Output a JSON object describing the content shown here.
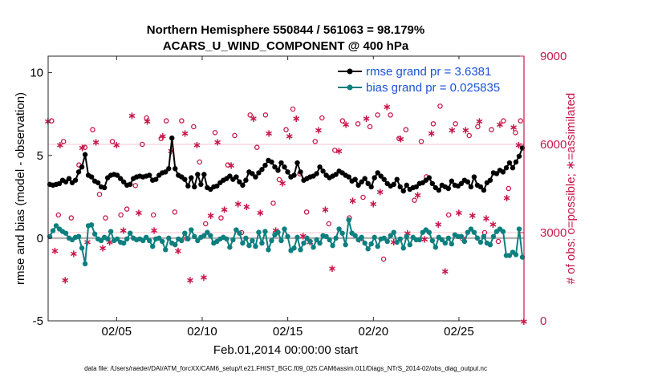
{
  "chart_data": {
    "type": "line",
    "title_line1": "Northern Hemisphere 550844 / 561063 = 98.179%",
    "title_line2": "ACARS_U_WIND_COMPONENT @ 400 hPa",
    "xlabel": "Feb.01,2014 00:00:00 start",
    "ylabel_left": "rmse and bias (model - observation)",
    "ylabel_right": "# of obs: o=possible; ∗=assimilated",
    "footnote": "data file: /Users/raeder/DAI/ATM_forcXX/CAM6_setup/f.e21.FHIST_BGC.f09_025.CAM6assim.011/Diags_NTrS_2014-02/obs_diag_output.nc",
    "x_day_range": [
      1,
      28.8
    ],
    "x_ticks": [
      {
        "day": 5,
        "label": "02/05"
      },
      {
        "day": 10,
        "label": "02/10"
      },
      {
        "day": 15,
        "label": "02/15"
      },
      {
        "day": 20,
        "label": "02/20"
      },
      {
        "day": 25,
        "label": "02/25"
      }
    ],
    "ylim_left": [
      -5,
      11
    ],
    "yticks_left": [
      {
        "value": -5,
        "label": "-5"
      },
      {
        "value": 0,
        "label": "0"
      },
      {
        "value": 5,
        "label": "5"
      },
      {
        "value": 10,
        "label": "10"
      }
    ],
    "ylim_right": [
      0,
      9000
    ],
    "yticks_right": [
      {
        "value": 0,
        "label": "0"
      },
      {
        "value": 3000,
        "label": "3000"
      },
      {
        "value": 6000,
        "label": "6000"
      },
      {
        "value": 9000,
        "label": "9000"
      }
    ],
    "series": [
      {
        "name": "rmse grand pr = 3.6381",
        "color": "#000000",
        "axis": "left",
        "values": [
          3.25,
          3.2,
          3.25,
          3.3,
          3.5,
          3.4,
          3.6,
          3.35,
          3.5,
          4.0,
          4.3,
          5.05,
          3.8,
          3.7,
          3.45,
          3.35,
          3.1,
          3.05,
          3.65,
          3.8,
          3.85,
          3.8,
          3.6,
          3.4,
          3.2,
          3.25,
          3.6,
          3.7,
          3.75,
          3.7,
          3.75,
          3.8,
          3.5,
          3.55,
          3.8,
          3.95,
          4.0,
          4.2,
          6.05,
          4.2,
          3.8,
          3.7,
          3.55,
          3.15,
          3.65,
          3.1,
          3.85,
          3.25,
          3.85,
          3.05,
          2.95,
          3.1,
          3.15,
          3.35,
          3.5,
          3.6,
          3.75,
          3.55,
          3.7,
          3.4,
          3.2,
          3.5,
          4.0,
          3.9,
          3.7,
          3.95,
          4.15,
          4.4,
          4.7,
          4.6,
          4.3,
          4.1,
          4.55,
          4.3,
          4.0,
          3.7,
          3.8,
          4.55,
          4.0,
          3.5,
          3.6,
          3.7,
          3.75,
          3.9,
          4.3,
          4.05,
          3.8,
          3.65,
          3.75,
          3.85,
          4.05,
          3.95,
          3.8,
          3.7,
          3.45,
          3.55,
          3.2,
          3.4,
          3.6,
          3.3,
          3.1,
          3.65,
          3.95,
          3.75,
          3.55,
          3.3,
          3.15,
          3.25,
          3.55,
          3.1,
          2.85,
          3.2,
          2.95,
          3.05,
          3.1,
          3.3,
          3.35,
          3.5,
          3.65,
          3.3,
          3.05,
          2.9,
          3.2,
          3.1,
          3.0,
          3.45,
          3.2,
          3.15,
          3.3,
          3.5,
          3.4,
          3.1,
          3.7,
          3.2,
          3.1,
          2.9,
          3.35,
          3.5,
          3.95,
          3.9,
          4.1,
          4.0,
          4.25,
          4.55,
          4.25,
          4.6,
          4.95,
          5.45
        ]
      },
      {
        "name": "bias grand pr = 0.025835",
        "color": "#0e7f7f",
        "axis": "left",
        "values": [
          0.1,
          0.45,
          0.75,
          0.55,
          0.4,
          0.3,
          0.0,
          -0.1,
          0.05,
          0.1,
          -0.6,
          -1.55,
          0.75,
          0.8,
          0.25,
          -0.05,
          -0.15,
          0.05,
          -0.05,
          0.4,
          -0.15,
          -0.05,
          -0.25,
          -0.3,
          -0.05,
          0.3,
          0.0,
          -0.1,
          -0.05,
          -0.15,
          0.05,
          -0.15,
          -0.5,
          -0.05,
          0.0,
          -0.2,
          -0.7,
          0.0,
          -0.3,
          -0.4,
          -0.05,
          -0.15,
          0.3,
          -0.05,
          0.5,
          0.1,
          -0.15,
          0.05,
          0.15,
          0.35,
          0.15,
          -0.3,
          -0.2,
          -0.05,
          0.05,
          -0.05,
          -0.55,
          -0.1,
          0.5,
          0.3,
          -0.3,
          0.0,
          -0.45,
          -0.15,
          -0.5,
          0.35,
          -0.3,
          0.4,
          -0.7,
          -0.15,
          0.2,
          0.35,
          -0.15,
          0.55,
          0.1,
          -0.75,
          -0.6,
          0.05,
          -0.7,
          -0.3,
          0.0,
          -0.2,
          -0.55,
          -0.1,
          -0.3,
          0.15,
          0.1,
          -0.1,
          -0.45,
          0.0,
          0.55,
          0.3,
          -0.4,
          1.1,
          0.3,
          0.15,
          -0.1,
          0.05,
          -0.3,
          -0.65,
          -0.35,
          0.05,
          -0.5,
          -0.05,
          0.0,
          -0.2,
          0.15,
          0.35,
          -0.25,
          -0.05,
          -0.6,
          0.1,
          -0.4,
          0.05,
          -0.1,
          -0.1,
          0.35,
          0.5,
          0.35,
          -0.15,
          -0.55,
          0.05,
          -0.1,
          -0.3,
          0.0,
          -0.35,
          0.2,
          0.1,
          0.1,
          -0.2,
          0.35,
          0.55,
          0.35,
          0.0,
          -0.25,
          0.1,
          -0.3,
          -0.4,
          0.1,
          0.4,
          0.55,
          0.4,
          -1.05,
          -1.05,
          -0.85,
          -1.0,
          0.55,
          -1.15
        ]
      },
      {
        "name": "obs possible",
        "marker": "o",
        "color": "#c8174a",
        "axis": "right",
        "days": [
          1.2,
          1.6,
          1.9,
          2.35,
          2.8,
          3.15,
          3.6,
          4.0,
          4.35,
          4.75,
          5.25,
          5.6,
          6.1,
          6.5,
          6.75,
          7.15,
          7.6,
          7.9,
          8.4,
          8.8,
          9.1,
          9.5,
          9.85,
          10.2,
          10.75,
          11.1,
          11.5,
          11.9,
          12.3,
          12.8,
          13.2,
          13.7,
          14.15,
          14.5,
          14.9,
          15.3,
          15.7,
          16.1,
          16.6,
          17.0,
          17.4,
          17.75,
          18.2,
          18.6,
          19.1,
          19.4,
          19.8,
          20.25,
          20.6,
          21.0,
          21.5,
          21.9,
          22.4,
          22.8,
          23.1,
          23.5,
          23.9,
          24.4,
          24.8,
          25.2,
          25.6,
          26.1,
          26.5,
          26.9,
          27.3,
          27.6,
          27.9,
          28.3,
          28.6
        ],
        "values": [
          6800,
          3600,
          6100,
          3500,
          5300,
          5900,
          6500,
          4300,
          3500,
          6100,
          3600,
          3800,
          4600,
          6000,
          6900,
          3600,
          6200,
          6800,
          3700,
          6800,
          2800,
          6600,
          5400,
          3300,
          6400,
          3500,
          5300,
          6300,
          3000,
          7000,
          5900,
          7000,
          4000,
          4800,
          6500,
          7200,
          5000,
          3700,
          6100,
          6900,
          3300,
          5800,
          6800,
          3500,
          6700,
          4200,
          6600,
          7000,
          2100,
          7000,
          6200,
          6500,
          4100,
          6100,
          4900,
          6700,
          7300,
          3600,
          6700,
          2800,
          6300,
          6600,
          3000,
          6500,
          2700,
          6800,
          4500,
          6400,
          6800
        ]
      },
      {
        "name": "obs assimilated",
        "marker": "*",
        "color": "#c8174a",
        "axis": "right",
        "days": [
          1.0,
          1.4,
          1.7,
          2.0,
          2.5,
          3.0,
          3.3,
          3.8,
          4.2,
          4.6,
          5.0,
          5.4,
          5.9,
          6.3,
          6.8,
          7.2,
          7.7,
          8.2,
          8.6,
          9.0,
          9.3,
          9.7,
          10.1,
          10.5,
          10.9,
          11.3,
          11.7,
          12.1,
          12.6,
          13.0,
          13.4,
          13.9,
          14.3,
          14.7,
          15.1,
          15.5,
          15.9,
          16.3,
          16.8,
          17.2,
          17.6,
          18.0,
          18.4,
          18.8,
          19.2,
          19.6,
          20.0,
          20.4,
          20.8,
          21.2,
          21.6,
          22.0,
          22.6,
          23.0,
          23.4,
          23.8,
          24.2,
          24.6,
          25.0,
          25.4,
          25.8,
          26.2,
          26.6,
          27.0,
          27.4,
          27.8,
          28.2,
          28.5,
          28.8
        ],
        "values": [
          6800,
          2400,
          6000,
          1400,
          2300,
          5900,
          2700,
          6100,
          2500,
          2700,
          6000,
          3100,
          7000,
          3700,
          6800,
          3100,
          6300,
          5800,
          2400,
          6400,
          1400,
          6000,
          1500,
          3600,
          6100,
          3800,
          5300,
          4000,
          3900,
          6900,
          3700,
          6400,
          3100,
          4700,
          6300,
          6900,
          2900,
          2700,
          6500,
          3800,
          1800,
          5800,
          6700,
          4100,
          2800,
          6900,
          4000,
          4400,
          7300,
          2700,
          6200,
          3000,
          4300,
          2800,
          6400,
          3300,
          1700,
          6500,
          3700,
          6500,
          3600,
          6800,
          3500,
          3300,
          6700,
          4200,
          6600,
          6000,
          0
        ]
      }
    ]
  }
}
